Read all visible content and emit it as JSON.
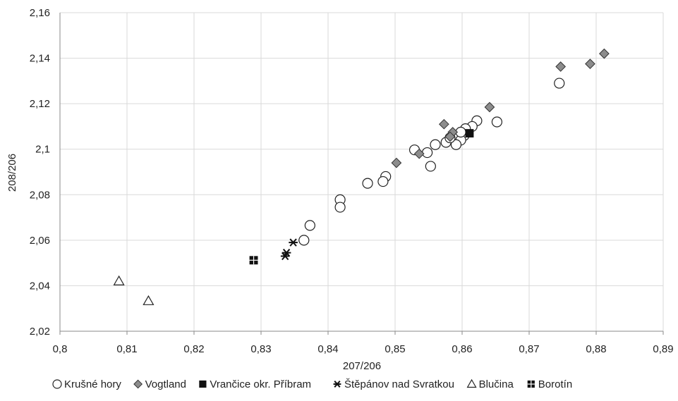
{
  "chart_data": {
    "type": "scatter",
    "xlabel": "207/206",
    "ylabel": "208/206",
    "xlim": [
      0.8,
      0.89
    ],
    "ylim": [
      2.02,
      2.16
    ],
    "xticks": [
      0.8,
      0.81,
      0.82,
      0.83,
      0.84,
      0.85,
      0.86,
      0.87,
      0.88,
      0.89
    ],
    "yticks": [
      2.02,
      2.04,
      2.06,
      2.08,
      2.1,
      2.12,
      2.14,
      2.16
    ],
    "xtick_labels": [
      "0,8",
      "0,81",
      "0,82",
      "0,83",
      "0,84",
      "0,85",
      "0,86",
      "0,87",
      "0,88",
      "0,89"
    ],
    "ytick_labels": [
      "2,02",
      "2,04",
      "2,06",
      "2,08",
      "2,1",
      "2,12",
      "2,14",
      "2,16"
    ],
    "grid": true,
    "legend_position": "bottom",
    "series": [
      {
        "name": "Krušné hory",
        "marker": "circle-open",
        "color": "#222222",
        "points": [
          [
            0.8745,
            2.129
          ],
          [
            0.8652,
            2.112
          ],
          [
            0.8622,
            2.1125
          ],
          [
            0.8615,
            2.11
          ],
          [
            0.8605,
            2.109
          ],
          [
            0.8603,
            2.106
          ],
          [
            0.8598,
            2.104
          ],
          [
            0.8591,
            2.102
          ],
          [
            0.8576,
            2.103
          ],
          [
            0.856,
            2.102
          ],
          [
            0.8548,
            2.0985
          ],
          [
            0.8529,
            2.0997
          ],
          [
            0.8553,
            2.0925
          ],
          [
            0.8486,
            2.088
          ],
          [
            0.8482,
            2.0858
          ],
          [
            0.8459,
            2.085
          ],
          [
            0.8418,
            2.0778
          ],
          [
            0.8418,
            2.0745
          ],
          [
            0.8373,
            2.0665
          ],
          [
            0.8364,
            2.06
          ],
          [
            0.8598,
            2.1075
          ],
          [
            0.8582,
            2.105
          ]
        ]
      },
      {
        "name": "Vogtland",
        "marker": "diamond",
        "color": "#8c8c8c",
        "points": [
          [
            0.8812,
            2.142
          ],
          [
            0.8791,
            2.1375
          ],
          [
            0.8747,
            2.1363
          ],
          [
            0.8641,
            2.1185
          ],
          [
            0.8573,
            2.111
          ],
          [
            0.8586,
            2.1075
          ],
          [
            0.8582,
            2.1055
          ],
          [
            0.8536,
            2.098
          ],
          [
            0.8502,
            2.094
          ]
        ]
      },
      {
        "name": "Vrančice okr. Příbram",
        "marker": "square-filled",
        "color": "#111111",
        "points": [
          [
            0.8611,
            2.107
          ]
        ]
      },
      {
        "name": "Štěpánov nad Svratkou",
        "marker": "star",
        "color": "#222222",
        "points": [
          [
            0.8348,
            2.059
          ],
          [
            0.8338,
            2.0545
          ],
          [
            0.8336,
            2.053
          ]
        ]
      },
      {
        "name": "Blučina",
        "marker": "triangle-open",
        "color": "#222222",
        "points": [
          [
            0.8088,
            2.042
          ],
          [
            0.8132,
            2.0333
          ]
        ]
      },
      {
        "name": "Borotín",
        "marker": "square-pattern",
        "color": "#111111",
        "points": [
          [
            0.8289,
            2.0512
          ]
        ]
      }
    ]
  }
}
